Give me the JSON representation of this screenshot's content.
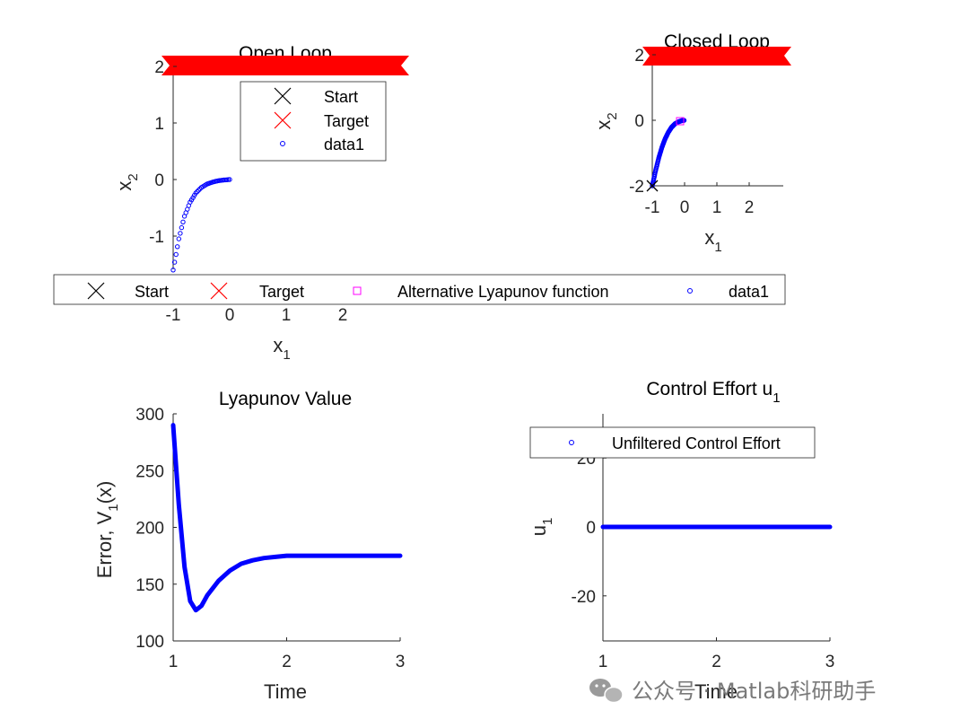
{
  "chart_data": [
    {
      "id": "open",
      "type": "scatter",
      "title": "Open Loop",
      "xlabel_main": "x",
      "xlabel_sub": "1",
      "ylabel_main": "x",
      "ylabel_sub": "2",
      "xlim": [
        -1,
        3
      ],
      "ylim": [
        -2,
        2
      ],
      "xticks": [
        "-1",
        "0",
        "1",
        "2"
      ],
      "yticks": [
        "2",
        "1",
        "0",
        "-1"
      ],
      "legend": {
        "placement": "top-center",
        "entries": [
          "Start",
          "Target",
          "data1"
        ]
      },
      "series": [
        {
          "name": "data1",
          "color": "#0000ff",
          "marker": "circle",
          "x": [
            -1.0,
            -0.9,
            -0.8,
            -0.7,
            -0.6,
            -0.5,
            -0.4,
            -0.3,
            -0.2,
            -0.1,
            0.0
          ],
          "y": [
            -1.6,
            -1.05,
            -0.65,
            -0.4,
            -0.24,
            -0.14,
            -0.08,
            -0.045,
            -0.02,
            -0.008,
            0.0
          ]
        }
      ]
    },
    {
      "id": "closed",
      "type": "scatter",
      "title": "Closed Loop",
      "xlabel_main": "x",
      "xlabel_sub": "1",
      "ylabel_main": "x",
      "ylabel_sub": "2",
      "xlim": [
        -1,
        3
      ],
      "ylim": [
        -2,
        2
      ],
      "xticks": [
        "-1",
        "0",
        "1",
        "2"
      ],
      "yticks": [
        "2",
        "0",
        "-2"
      ],
      "series": [
        {
          "name": "data1",
          "color": "#0000ff",
          "marker": "circle",
          "x": [
            -1.0,
            -0.9,
            -0.8,
            -0.7,
            -0.6,
            -0.5,
            -0.4,
            -0.3,
            -0.2,
            -0.1,
            0.0
          ],
          "y": [
            -2.0,
            -1.55,
            -1.15,
            -0.82,
            -0.56,
            -0.36,
            -0.21,
            -0.11,
            -0.05,
            -0.015,
            0.0
          ]
        }
      ]
    },
    {
      "id": "lyap",
      "type": "line",
      "title": "Lyapunov Value",
      "xlabel_main": "Time",
      "ylabel_main": "Error, V",
      "ylabel_sub": "1",
      "ylabel_tail": "(x)",
      "xlim": [
        1,
        3
      ],
      "ylim": [
        100,
        300
      ],
      "xticks": [
        "1",
        "2",
        "3"
      ],
      "yticks": [
        "300",
        "250",
        "200",
        "150",
        "100"
      ],
      "series": [
        {
          "color": "#0000ff",
          "x": [
            1.0,
            1.05,
            1.1,
            1.15,
            1.2,
            1.25,
            1.3,
            1.4,
            1.5,
            1.6,
            1.7,
            1.8,
            1.9,
            2.0,
            2.2,
            2.5,
            2.8,
            3.0
          ],
          "y": [
            290,
            220,
            165,
            135,
            127,
            131,
            140,
            153,
            162,
            168,
            171,
            173,
            174,
            175,
            175,
            175,
            175,
            175
          ]
        }
      ]
    },
    {
      "id": "control",
      "type": "line",
      "title": "Control Effort u",
      "title_sub": "1",
      "xlabel_main": "Time",
      "ylabel_main": "u",
      "ylabel_sub": "1",
      "xlim": [
        1,
        3
      ],
      "ylim": [
        -33,
        33
      ],
      "xticks": [
        "1",
        "2",
        "3"
      ],
      "yticks": [
        "20",
        "0",
        "-20"
      ],
      "legend": {
        "placement": "top",
        "entries": [
          "Unfiltered Control Effort"
        ]
      },
      "series": [
        {
          "name": "Unfiltered Control Effort",
          "color": "#0000ff",
          "x": [
            1.0,
            2.0,
            3.0
          ],
          "y": [
            0,
            0,
            0
          ]
        }
      ]
    }
  ],
  "shared_legend": {
    "entries": [
      "Start",
      "Target",
      "Alternative Lyapunov function",
      "data1"
    ]
  },
  "watermark": {
    "text": "公众号 · Matlab科研助手"
  },
  "colors": {
    "target": "#ff0000",
    "series": "#0000ff",
    "alt_lyapunov": "#ff00ff"
  }
}
